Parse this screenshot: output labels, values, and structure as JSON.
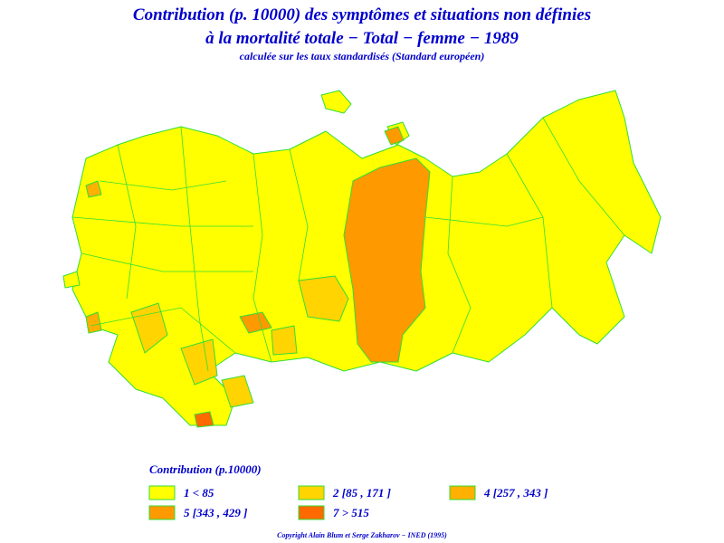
{
  "header": {
    "title_line1": "Contribution (p. 10000) des symptômes et situations non définies",
    "title_line2": "à la mortalité totale − Total − femme − 1989",
    "subtitle": "calculée sur les taux standardisés (Standard européen)"
  },
  "legend": {
    "title": "Contribution (p.10000)",
    "items": [
      {
        "label": "1  <  85",
        "color": "#ffff00"
      },
      {
        "label": "2  [85 ,  171 ]",
        "color": "#ffd400"
      },
      {
        "label": "4  [257 ,  343 ]",
        "color": "#ffb000"
      },
      {
        "label": "5  [343 ,  429 ]",
        "color": "#ff9900"
      },
      {
        "label": "7  >  515",
        "color": "#ff6a00"
      }
    ]
  },
  "footer": {
    "copyright": "Copyright Alain Blum et Serge Zakharov − INED (1995)"
  }
}
